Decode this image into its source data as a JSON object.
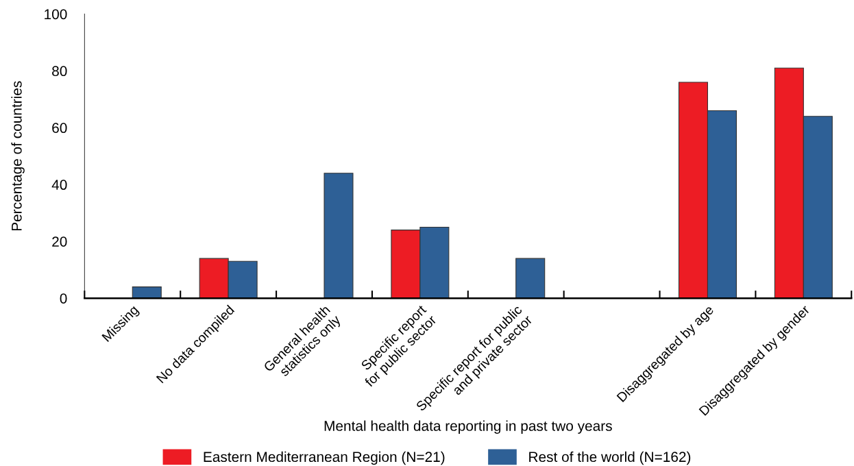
{
  "chart_data": {
    "type": "bar",
    "xlabel": "Mental health data reporting in past two years",
    "ylabel": "Percentage of countries",
    "categories": [
      "Missing",
      "No data compiled",
      "General health\nstatistics only",
      "Specific report\nfor public sector",
      "Specific report for public\nand private sector",
      null,
      "Disaggregated by age",
      "Disaggregated by gender"
    ],
    "series": [
      {
        "name": "Eastern Mediterranean Region (N=21)",
        "color": "#ed1c24",
        "values": [
          0,
          14,
          0,
          24,
          0,
          null,
          76,
          81
        ]
      },
      {
        "name": "Rest of the world (N=162)",
        "color": "#2e6096",
        "values": [
          4,
          13,
          44,
          25,
          14,
          null,
          66,
          64
        ]
      }
    ],
    "ylim": [
      0,
      100
    ],
    "yticks": [
      0,
      20,
      40,
      60,
      80,
      100
    ],
    "grid": false,
    "legend": "bottom"
  }
}
